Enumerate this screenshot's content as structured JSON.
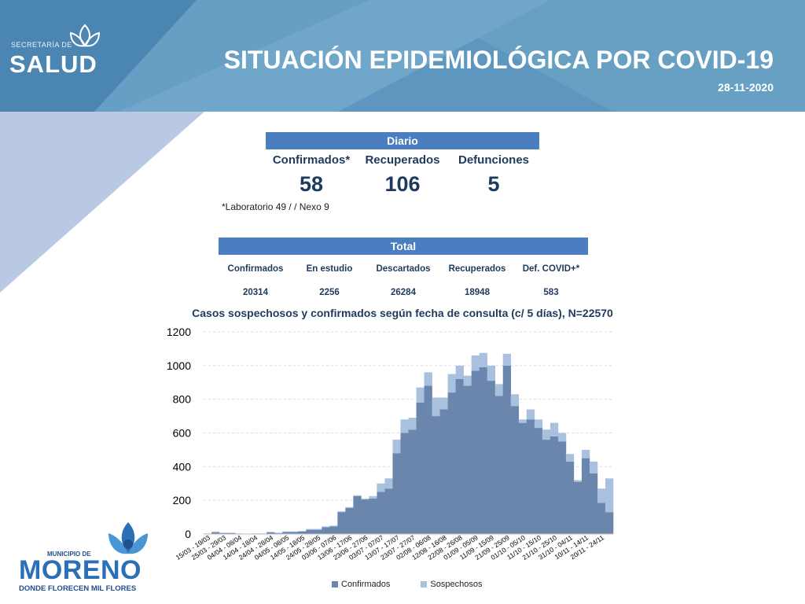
{
  "header": {
    "logo_small": "SECRETARÍA DE",
    "logo_big": "SALUD",
    "title": "SITUACIÓN EPIDEMIOLÓGICA POR COVID-19",
    "date": "28-11-2020",
    "color": "#5d97bf"
  },
  "diario": {
    "title": "Diario",
    "columns": [
      {
        "label": "Confirmados*",
        "value": "58"
      },
      {
        "label": "Recuperados",
        "value": "106"
      },
      {
        "label": "Defunciones",
        "value": "5"
      }
    ],
    "note": "*Laboratorio 49 / / Nexo 9"
  },
  "total": {
    "title": "Total",
    "columns": [
      {
        "label": "Confirmados",
        "value": "20314"
      },
      {
        "label": "En estudio",
        "value": "2256"
      },
      {
        "label": "Descartados",
        "value": "26284"
      },
      {
        "label": "Recuperados",
        "value": "18948"
      },
      {
        "label": "Def. COVID+*",
        "value": "583"
      }
    ]
  },
  "footer": {
    "logo_top": "MUNICIPIO DE",
    "logo_name": "MORENO",
    "logo_tagline": "DONDE FLORECEN MIL FLORES"
  },
  "chart_data": {
    "type": "bar",
    "stacked": true,
    "title": "Casos sospechosos y confirmados según fecha de consulta (c/ 5 días), N=22570",
    "ylim": [
      0,
      1200
    ],
    "yticks": [
      0,
      200,
      400,
      600,
      800,
      1000,
      1200
    ],
    "grid": true,
    "legend": "bottom",
    "tick_labels": [
      "15/03 - 19/03",
      "25/03 - 29/03",
      "04/04 - 08/04",
      "14/04 - 18/04",
      "24/04 - 28/04",
      "04/05 - 08/05",
      "14/05 - 18/05",
      "24/05 - 28/05",
      "03/06 - 07/06",
      "13/06 - 17/06",
      "23/06 - 27/06",
      "03/07 - 07/07",
      "13/07 - 17/07",
      "23/07 - 27/07",
      "02/08 - 06/08",
      "12/08 - 16/08",
      "22/08 - 26/08",
      "01/09 - 05/09",
      "11/09 - 15/09",
      "21/09 - 25/09",
      "01/10 - 05/10",
      "11/10 - 15/10",
      "21/10 - 25/10",
      "31/10 - 04/11",
      "10/11 - 14/11",
      "20/11 - 24/11"
    ],
    "series": [
      {
        "name": "Confirmados",
        "color": "#6b86ad",
        "values": [
          3,
          10,
          5,
          5,
          3,
          2,
          3,
          3,
          10,
          5,
          12,
          12,
          15,
          25,
          25,
          40,
          45,
          130,
          155,
          225,
          205,
          210,
          250,
          270,
          480,
          600,
          620,
          780,
          880,
          700,
          740,
          840,
          920,
          880,
          970,
          990,
          910,
          820,
          1000,
          760,
          660,
          680,
          630,
          560,
          580,
          550,
          430,
          310,
          450,
          360,
          185,
          130
        ]
      },
      {
        "name": "Sospechosos",
        "color": "#a9c0de",
        "values": [
          0,
          5,
          3,
          3,
          0,
          0,
          0,
          0,
          3,
          3,
          3,
          3,
          3,
          5,
          5,
          5,
          5,
          5,
          5,
          5,
          5,
          15,
          50,
          60,
          80,
          80,
          70,
          90,
          80,
          110,
          70,
          110,
          80,
          60,
          90,
          85,
          90,
          70,
          70,
          70,
          20,
          60,
          50,
          60,
          80,
          50,
          45,
          10,
          50,
          70,
          85,
          200
        ]
      }
    ]
  }
}
